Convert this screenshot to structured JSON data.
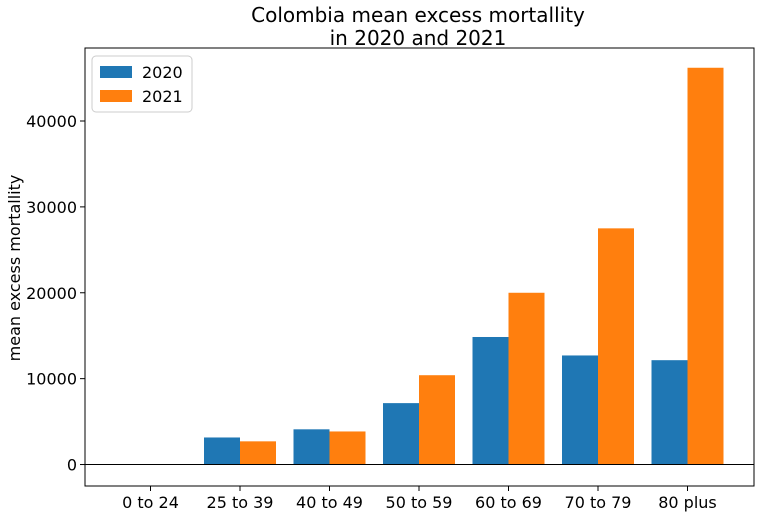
{
  "chart_data": {
    "type": "bar",
    "title_lines": [
      "Colombia mean excess mortallity",
      "in 2020 and 2021"
    ],
    "xlabel": "",
    "ylabel": "mean excess mortallity",
    "categories": [
      "0 to 24",
      "25 to 39",
      "40 to 49",
      "50 to 59",
      "60 to 69",
      "70 to 79",
      "80 plus"
    ],
    "series": [
      {
        "name": "2020",
        "color": "#1f77b4",
        "values": [
          0,
          3150,
          4100,
          7150,
          14850,
          12700,
          12150
        ]
      },
      {
        "name": "2021",
        "color": "#ff7f0e",
        "values": [
          0,
          2700,
          3850,
          10400,
          20000,
          27500,
          46200
        ]
      }
    ],
    "ylim": [
      -2500,
      48500
    ],
    "yticks": [
      0,
      10000,
      20000,
      30000,
      40000
    ],
    "ytick_labels": [
      "0",
      "10000",
      "20000",
      "30000",
      "40000"
    ],
    "zero_line": true,
    "grid": false,
    "legend_position": "top-left"
  }
}
